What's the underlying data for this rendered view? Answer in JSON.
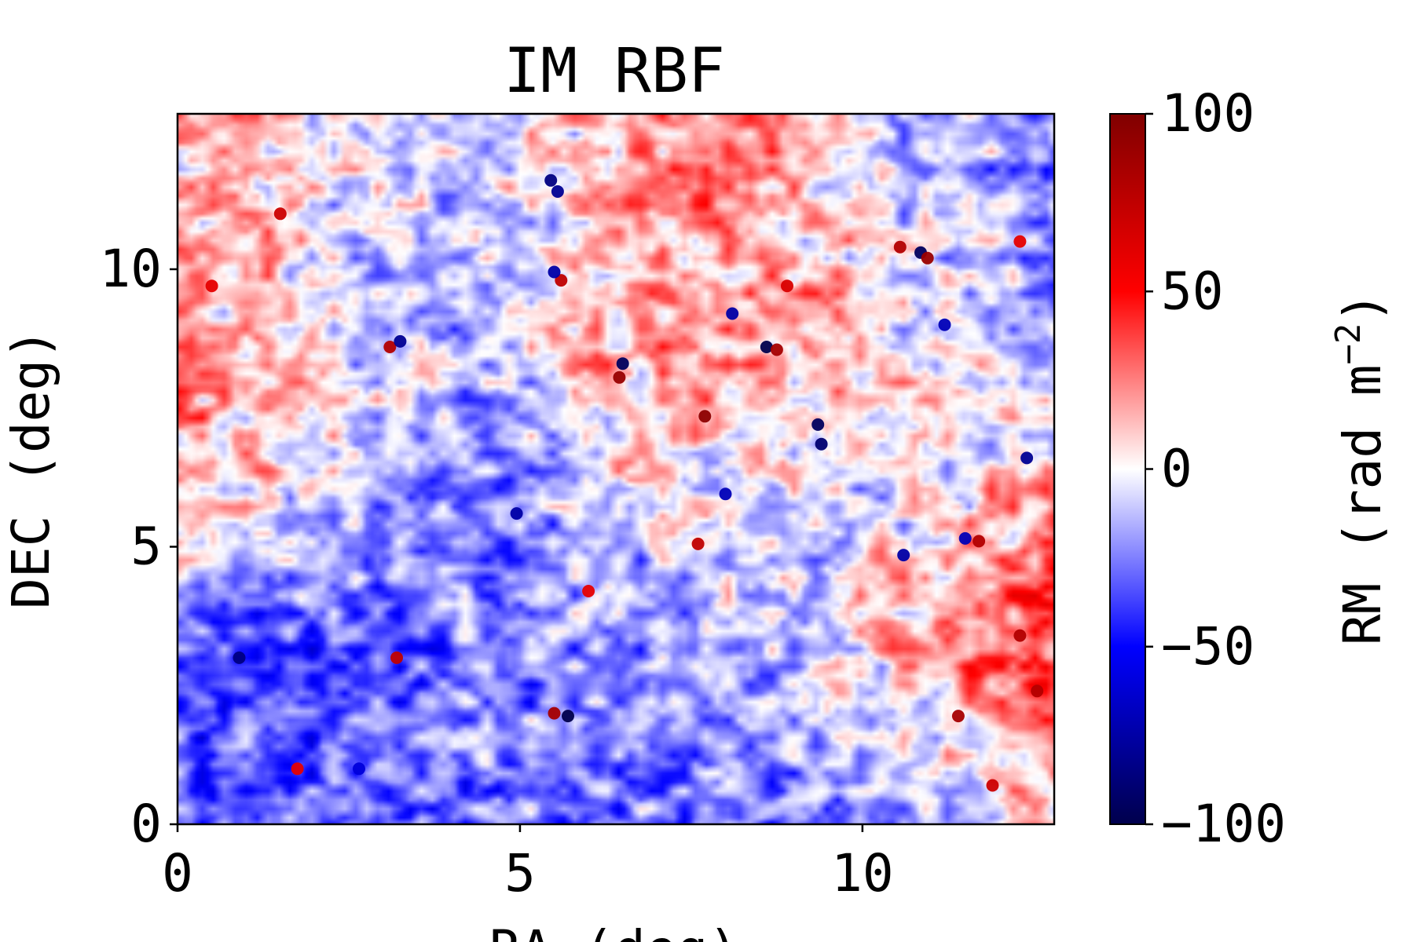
{
  "chart_data": {
    "type": "heatmap",
    "title": "IM RBF",
    "xlabel": "RA (deg)",
    "ylabel": "DEC (deg)",
    "xlim": [
      0,
      12.8
    ],
    "ylim": [
      0,
      12.8
    ],
    "xticks": [
      "0",
      "5",
      "10"
    ],
    "xtick_values": [
      0,
      5,
      10
    ],
    "yticks": [
      "0",
      "5",
      "10"
    ],
    "ytick_values": [
      0,
      5,
      10
    ],
    "colorbar": {
      "label": "RM (rad m⁻²)",
      "label_text": "RM (rad m",
      "label_exponent": "−2",
      "label_close": ")",
      "range": [
        -100,
        100
      ],
      "ticks": [
        "100",
        "50",
        "0",
        "−50",
        "−100"
      ],
      "tick_values": [
        100,
        50,
        0,
        -50,
        -100
      ],
      "colormap": "seismic",
      "colors": [
        "#00004c",
        "#0000ff",
        "#ffffff",
        "#ff0000",
        "#800000"
      ]
    },
    "large_scale_features": [
      {
        "ra": 1.0,
        "dec": 9.0,
        "rm": 28
      },
      {
        "ra": 0.8,
        "dec": 11.5,
        "rm": 18
      },
      {
        "ra": 3.5,
        "dec": 11.2,
        "rm": -18
      },
      {
        "ra": 3.5,
        "dec": 9.5,
        "rm": -28
      },
      {
        "ra": 4.5,
        "dec": 5.5,
        "rm": -38
      },
      {
        "ra": 1.5,
        "dec": 3.5,
        "rm": -35
      },
      {
        "ra": 4.5,
        "dec": 2.0,
        "rm": -30
      },
      {
        "ra": 7.2,
        "dec": 7.5,
        "rm": 30
      },
      {
        "ra": 7.5,
        "dec": 11.5,
        "rm": 30
      },
      {
        "ra": 9.5,
        "dec": 9.8,
        "rm": 14
      },
      {
        "ra": 11.5,
        "dec": 11.2,
        "rm": -25
      },
      {
        "ra": 11.8,
        "dec": 3.0,
        "rm": 35
      },
      {
        "ra": 9.5,
        "dec": 1.0,
        "rm": -30
      },
      {
        "ra": 9.2,
        "dec": 6.0,
        "rm": -15
      },
      {
        "ra": 0.8,
        "dec": 6.5,
        "rm": 20
      },
      {
        "ra": 6.0,
        "dec": 3.5,
        "rm": -10
      }
    ],
    "point_sources": [
      {
        "ra": 3.1,
        "dec": 8.6,
        "rm": 80
      },
      {
        "ra": 3.25,
        "dec": 8.7,
        "rm": -80
      },
      {
        "ra": 6.5,
        "dec": 8.3,
        "rm": -95
      },
      {
        "ra": 6.45,
        "dec": 8.05,
        "rm": 90
      },
      {
        "ra": 7.7,
        "dec": 7.35,
        "rm": 95
      },
      {
        "ra": 8.6,
        "dec": 8.6,
        "rm": -100
      },
      {
        "ra": 8.75,
        "dec": 8.55,
        "rm": 85
      },
      {
        "ra": 5.45,
        "dec": 11.6,
        "rm": -85
      },
      {
        "ra": 5.55,
        "dec": 11.4,
        "rm": -80
      },
      {
        "ra": 5.6,
        "dec": 9.8,
        "rm": 75
      },
      {
        "ra": 5.5,
        "dec": 9.95,
        "rm": -75
      },
      {
        "ra": 10.55,
        "dec": 10.4,
        "rm": 80
      },
      {
        "ra": 10.85,
        "dec": 10.3,
        "rm": -95
      },
      {
        "ra": 10.95,
        "dec": 10.2,
        "rm": 90
      },
      {
        "ra": 9.35,
        "dec": 7.2,
        "rm": -95
      },
      {
        "ra": 9.4,
        "dec": 6.85,
        "rm": -90
      },
      {
        "ra": 12.4,
        "dec": 6.6,
        "rm": -80
      },
      {
        "ra": 11.7,
        "dec": 5.1,
        "rm": 80
      },
      {
        "ra": 11.5,
        "dec": 5.15,
        "rm": -70
      },
      {
        "ra": 12.3,
        "dec": 3.4,
        "rm": 80
      },
      {
        "ra": 12.55,
        "dec": 2.4,
        "rm": 80
      },
      {
        "ra": 11.4,
        "dec": 1.95,
        "rm": 85
      },
      {
        "ra": 11.9,
        "dec": 0.7,
        "rm": 70
      },
      {
        "ra": 5.5,
        "dec": 2.0,
        "rm": 85
      },
      {
        "ra": 5.7,
        "dec": 1.95,
        "rm": -100
      },
      {
        "ra": 3.2,
        "dec": 3.0,
        "rm": 75
      },
      {
        "ra": 0.9,
        "dec": 3.0,
        "rm": -85
      },
      {
        "ra": 4.95,
        "dec": 5.6,
        "rm": -75
      },
      {
        "ra": 7.6,
        "dec": 5.05,
        "rm": 75
      },
      {
        "ra": 8.0,
        "dec": 5.95,
        "rm": -70
      },
      {
        "ra": 8.1,
        "dec": 9.2,
        "rm": -75
      },
      {
        "ra": 8.9,
        "dec": 9.7,
        "rm": 65
      },
      {
        "ra": 1.5,
        "dec": 11.0,
        "rm": 70
      },
      {
        "ra": 0.5,
        "dec": 9.7,
        "rm": 60
      },
      {
        "ra": 12.3,
        "dec": 10.5,
        "rm": 60
      },
      {
        "ra": 11.2,
        "dec": 9.0,
        "rm": -70
      },
      {
        "ra": 10.6,
        "dec": 4.85,
        "rm": -75
      },
      {
        "ra": 2.65,
        "dec": 1.0,
        "rm": -60
      },
      {
        "ra": 1.75,
        "dec": 1.0,
        "rm": 60
      },
      {
        "ra": 6.0,
        "dec": 4.2,
        "rm": 60
      }
    ]
  }
}
